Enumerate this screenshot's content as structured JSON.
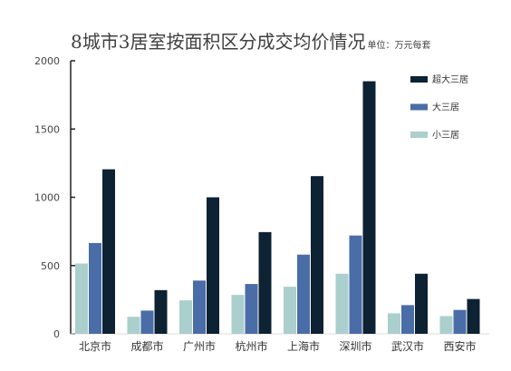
{
  "chart_data": {
    "type": "bar",
    "title": "8城市3居室按面积区分成交均价情况",
    "unit_label": "单位：万元每套",
    "categories": [
      "北京市",
      "成都市",
      "广州市",
      "杭州市",
      "上海市",
      "深圳市",
      "武汉市",
      "西安市"
    ],
    "series": [
      {
        "name": "小三居",
        "color": "#aacfcd",
        "values": [
          515,
          125,
          245,
          285,
          345,
          440,
          150,
          130
        ]
      },
      {
        "name": "大三居",
        "color": "#4a6da8",
        "values": [
          665,
          170,
          390,
          365,
          580,
          720,
          210,
          175
        ]
      },
      {
        "name": "超大三居",
        "color": "#0d2233",
        "values": [
          1205,
          320,
          1000,
          745,
          1155,
          1850,
          440,
          255
        ]
      }
    ],
    "ylim": [
      0,
      2000
    ],
    "yticks": [
      0,
      500,
      1000,
      1500,
      2000
    ],
    "legend_position": "top-right",
    "legend_order": [
      "超大三居",
      "大三居",
      "小三居"
    ],
    "grid": false
  }
}
